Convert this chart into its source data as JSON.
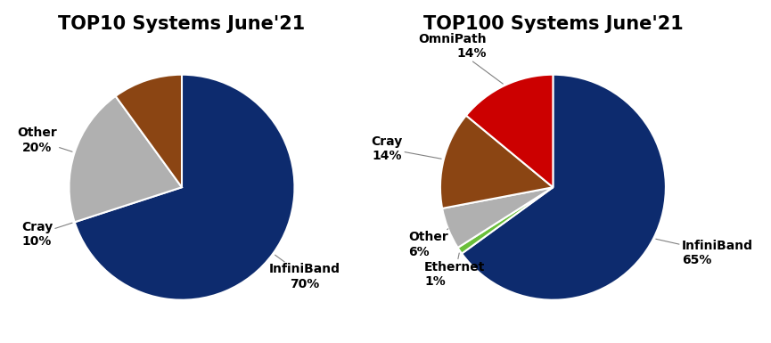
{
  "chart1": {
    "title": "TOP10 Systems June'21",
    "labels": [
      "InfiniBand",
      "Other",
      "Cray"
    ],
    "values": [
      70,
      20,
      10
    ],
    "colors": [
      "#0d2b6e",
      "#b0b0b0",
      "#8B4513"
    ],
    "startangle": 90
  },
  "chart2": {
    "title": "TOP100 Systems June'21",
    "labels": [
      "InfiniBand",
      "Ethernet",
      "Other",
      "Cray",
      "OmniPath"
    ],
    "values": [
      65,
      1,
      6,
      14,
      14
    ],
    "colors": [
      "#0d2b6e",
      "#6abf3a",
      "#b0b0b0",
      "#8B4513",
      "#cc0000"
    ],
    "startangle": 90
  },
  "background_color": "#ffffff",
  "title_fontsize": 15,
  "label_fontsize": 10
}
